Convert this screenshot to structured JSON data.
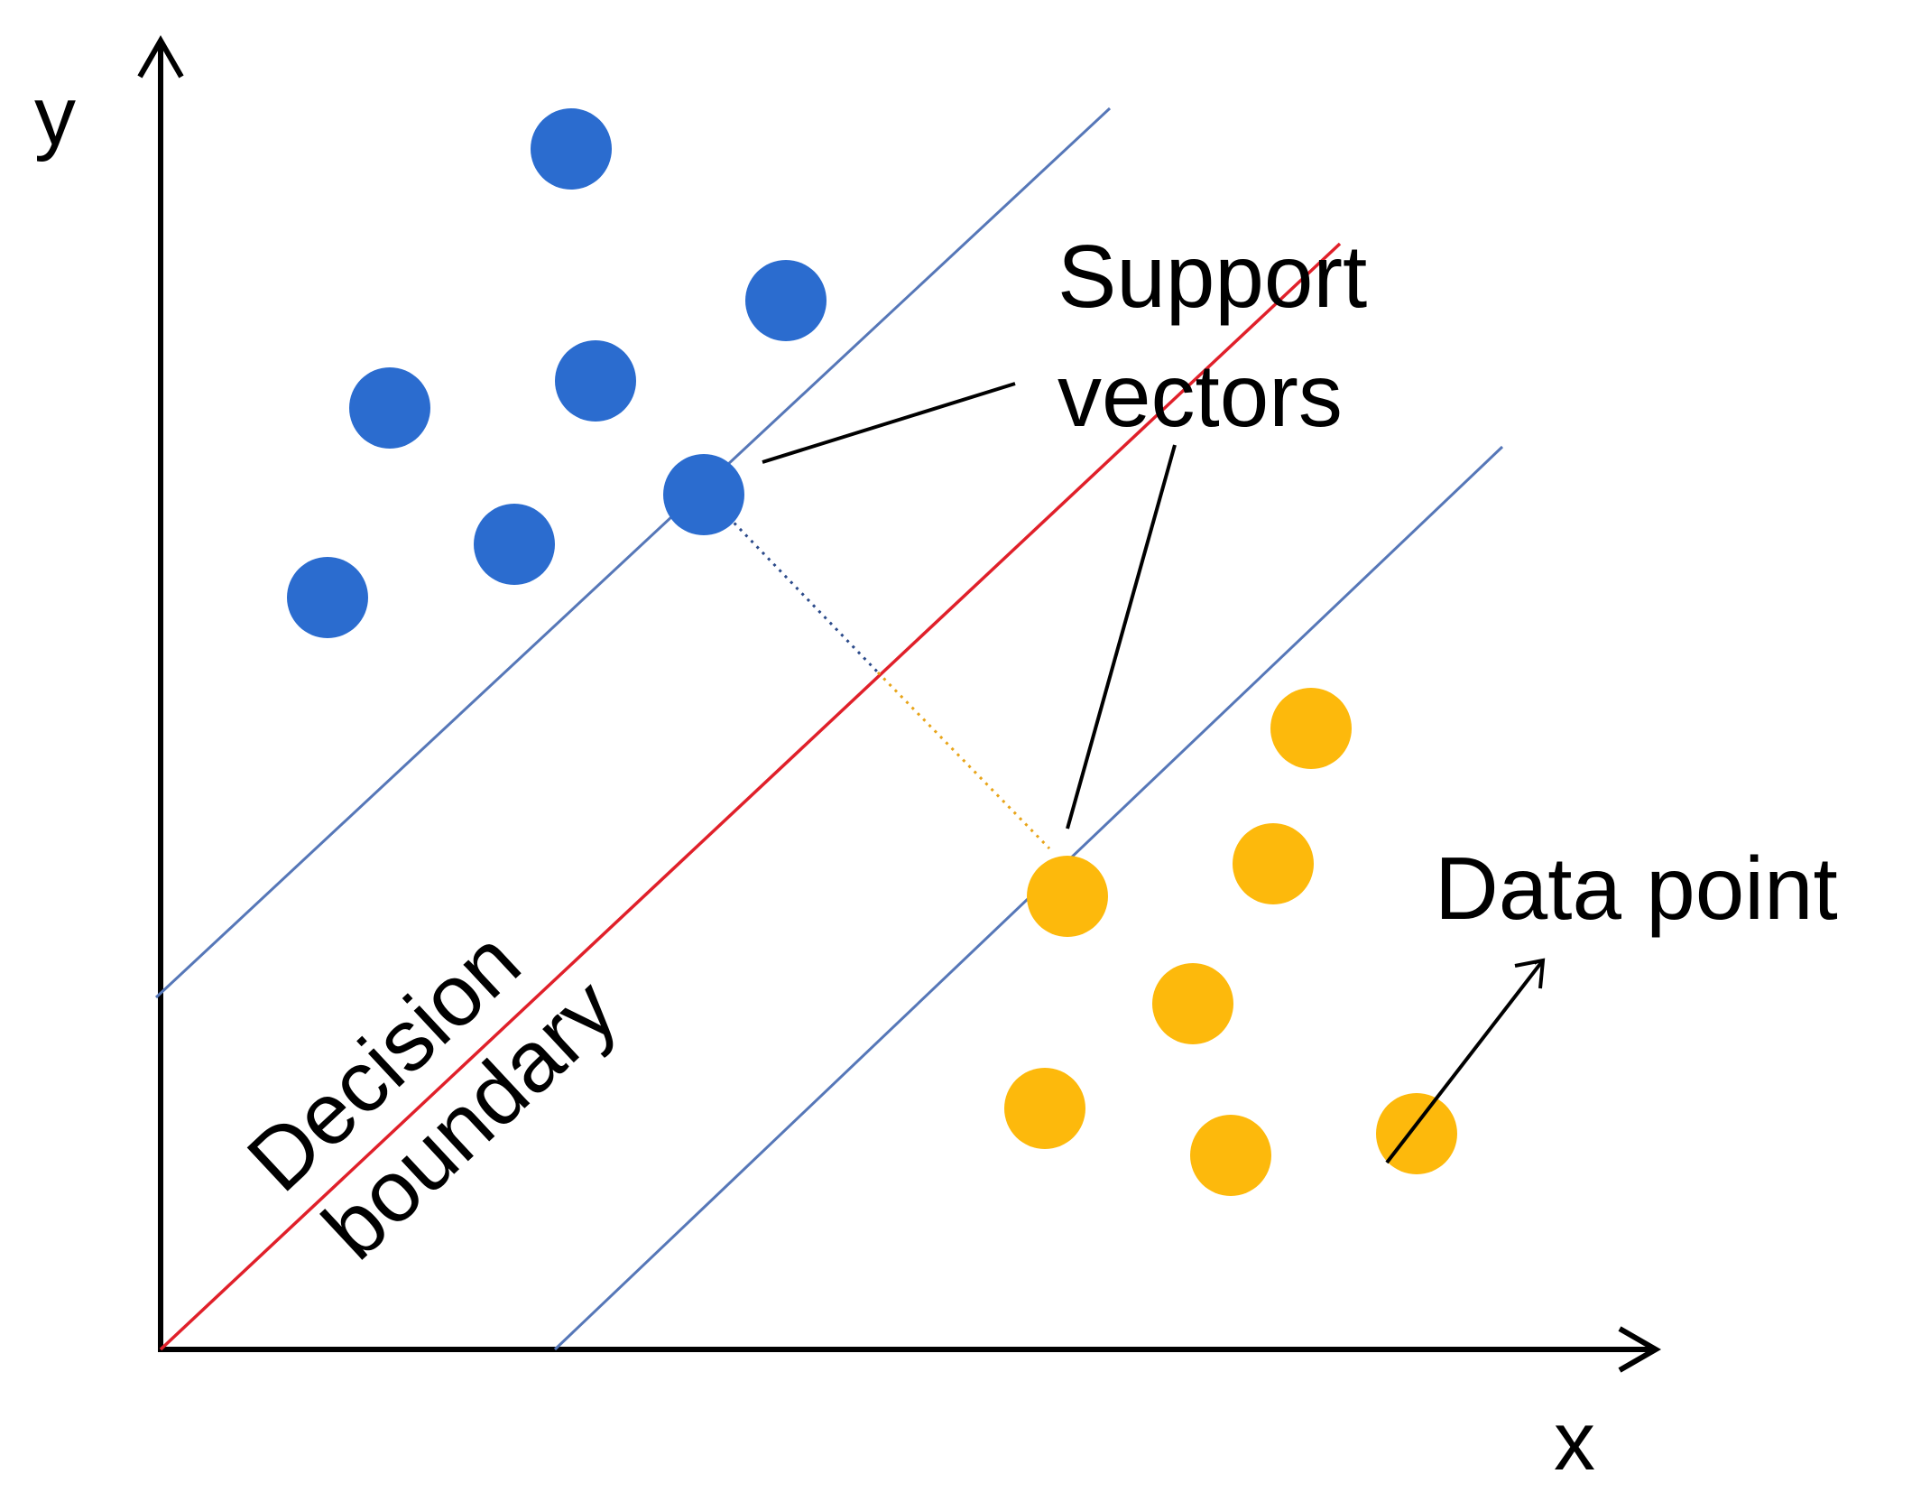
{
  "axes": {
    "x_label": "x",
    "y_label": "y"
  },
  "annotations": {
    "support_vectors_line1": "Support",
    "support_vectors_line2": "vectors",
    "data_point": "Data point",
    "decision_boundary_line1": "Decision",
    "decision_boundary_line2": "boundary"
  },
  "classes": [
    {
      "name": "blue-class",
      "color": "#2B6CCF",
      "point_count": 7
    },
    {
      "name": "orange-class",
      "color": "#FDB90C",
      "point_count": 7
    }
  ],
  "colors": {
    "axis": "#000000",
    "decision_boundary": "#E0202A",
    "margin_lines": "#5677B8",
    "blue_points": "#2B6CCF",
    "orange_points": "#FDB90C",
    "pointer_lines": "#000000"
  }
}
